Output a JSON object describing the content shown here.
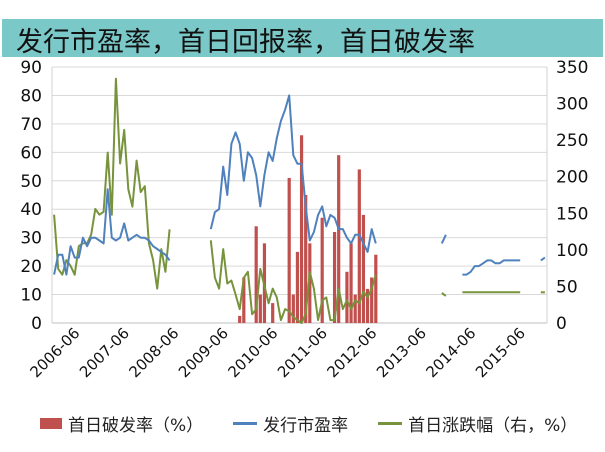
{
  "title": "发行市盈率，首日回报率，首日破发率",
  "colors": {
    "banner": "#7ac8c8",
    "bar": "#c0504d",
    "pe": "#4f81bd",
    "return": "#77933c",
    "grid": "#d9d9d9"
  },
  "chart_data": {
    "type": "bar+line",
    "x_frequency": "monthly",
    "x_start": "2006-01",
    "x_end": "2015-12",
    "x_tick_labels": [
      "2006-06",
      "2007-06",
      "2008-06",
      "2009-06",
      "2010-06",
      "2011-06",
      "2012-06",
      "2013-06",
      "2014-06",
      "2015-06"
    ],
    "left_axis": {
      "range": [
        0,
        90
      ],
      "ticks": [
        0,
        10,
        20,
        30,
        40,
        50,
        60,
        70,
        80,
        90
      ]
    },
    "right_axis": {
      "range": [
        0,
        350
      ],
      "ticks": [
        0,
        50,
        100,
        150,
        200,
        250,
        300,
        350
      ]
    },
    "grid": true,
    "legend_position": "bottom",
    "series": [
      {
        "name": "首日破发率（%）",
        "type": "bar",
        "axis": "left",
        "points": [
          {
            "x": "2009-10",
            "y": 2.5
          },
          {
            "x": "2009-11",
            "y": 16
          },
          {
            "x": "2010-02",
            "y": 34
          },
          {
            "x": "2010-03",
            "y": 10
          },
          {
            "x": "2010-04",
            "y": 28
          },
          {
            "x": "2010-06",
            "y": 7
          },
          {
            "x": "2010-10",
            "y": 51
          },
          {
            "x": "2010-11",
            "y": 10
          },
          {
            "x": "2010-12",
            "y": 25
          },
          {
            "x": "2011-01",
            "y": 66
          },
          {
            "x": "2011-02",
            "y": 45
          },
          {
            "x": "2011-03",
            "y": 28
          },
          {
            "x": "2011-06",
            "y": 37
          },
          {
            "x": "2011-09",
            "y": 32
          },
          {
            "x": "2011-10",
            "y": 59
          },
          {
            "x": "2011-12",
            "y": 18
          },
          {
            "x": "2012-01",
            "y": 28
          },
          {
            "x": "2012-02",
            "y": 10
          },
          {
            "x": "2012-03",
            "y": 54
          },
          {
            "x": "2012-04",
            "y": 38
          },
          {
            "x": "2012-05",
            "y": 12
          },
          {
            "x": "2012-06",
            "y": 16
          },
          {
            "x": "2012-07",
            "y": 24
          }
        ]
      },
      {
        "name": "发行市盈率",
        "type": "line",
        "axis": "left",
        "values": [
          17,
          24,
          24,
          17,
          27,
          23,
          23,
          30,
          27,
          30,
          30,
          29,
          28,
          47,
          30,
          29,
          30,
          35,
          29,
          30,
          31,
          30,
          30,
          29,
          27,
          26,
          25,
          24,
          22,
          null,
          null,
          null,
          null,
          null,
          null,
          null,
          null,
          null,
          33,
          39,
          40,
          55,
          45,
          63,
          67,
          63,
          50,
          60,
          58,
          52,
          41,
          52,
          60,
          57,
          65,
          71,
          75,
          80,
          59,
          56,
          56,
          41,
          29,
          32,
          38,
          41,
          34,
          38,
          37,
          33,
          33,
          30,
          28,
          31,
          31,
          28,
          25,
          33,
          28,
          null,
          null,
          null,
          null,
          null,
          null,
          null,
          null,
          null,
          null,
          null,
          null,
          null,
          null,
          null,
          28,
          31,
          null,
          null,
          null,
          17,
          17,
          18,
          20,
          20,
          21,
          22,
          22,
          21,
          21,
          22,
          22,
          22,
          22,
          22,
          null,
          null,
          null,
          null,
          22,
          23
        ]
      },
      {
        "name": "首日涨跌幅（右，%）",
        "type": "line",
        "axis": "right",
        "values": [
          148,
          74,
          66,
          86,
          78,
          66,
          105,
          109,
          109,
          121,
          156,
          148,
          152,
          233,
          148,
          334,
          218,
          264,
          183,
          159,
          222,
          179,
          187,
          109,
          86,
          47,
          101,
          70,
          128,
          null,
          null,
          null,
          null,
          null,
          null,
          null,
          null,
          null,
          113,
          62,
          47,
          101,
          54,
          58,
          39,
          19,
          62,
          70,
          12,
          19,
          74,
          51,
          27,
          47,
          35,
          4,
          19,
          16,
          8,
          4,
          0,
          12,
          70,
          47,
          4,
          31,
          35,
          4,
          4,
          47,
          19,
          31,
          19,
          31,
          27,
          43,
          35,
          47,
          66,
          null,
          null,
          null,
          null,
          null,
          null,
          null,
          null,
          null,
          null,
          null,
          null,
          null,
          null,
          null,
          41,
          37,
          null,
          null,
          null,
          42,
          42,
          42,
          42,
          42,
          42,
          42,
          42,
          42,
          42,
          42,
          42,
          42,
          42,
          42,
          null,
          null,
          null,
          null,
          42,
          42
        ]
      }
    ]
  }
}
